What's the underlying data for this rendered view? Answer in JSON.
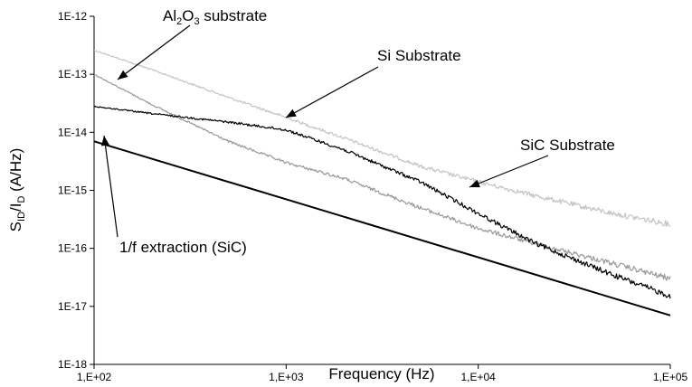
{
  "chart_data": {
    "type": "line",
    "title": "",
    "xlabel": "Frequency (Hz)",
    "ylabel": {
      "main": "S",
      "sub1": "ID",
      "mid": "/I",
      "sub2": "D",
      "tail": " (A/Hz)"
    },
    "x_scale": "log",
    "y_scale": "log",
    "xlim": [
      100,
      100000
    ],
    "ylim": [
      1e-18,
      1e-12
    ],
    "x_ticks": [
      {
        "value": 100,
        "label": "1,E+02"
      },
      {
        "value": 1000,
        "label": "1,E+03"
      },
      {
        "value": 10000,
        "label": "1,E+04"
      },
      {
        "value": 100000,
        "label": "1,E+05"
      }
    ],
    "y_ticks": [
      {
        "value": 1e-12,
        "label": "1E-12"
      },
      {
        "value": 1e-13,
        "label": "1E-13"
      },
      {
        "value": 1e-14,
        "label": "1E-14"
      },
      {
        "value": 1e-15,
        "label": "1E-15"
      },
      {
        "value": 1e-16,
        "label": "1E-16"
      },
      {
        "value": 1e-17,
        "label": "1E-17"
      },
      {
        "value": 1e-18,
        "label": "1E-18"
      }
    ],
    "grid": false,
    "series": [
      {
        "color": "#c4c4c4",
        "width": 1.2,
        "noisy": true,
        "x": [
          100,
          200,
          500,
          1000,
          2000,
          5000,
          10000,
          20000,
          50000,
          100000
        ],
        "y": [
          2.6e-13,
          1.2e-13,
          4e-14,
          1.8e-14,
          8e-15,
          2.6e-15,
          1.4e-15,
          8e-16,
          4e-16,
          2.6e-16
        ]
      },
      {
        "color": "#999999",
        "width": 1.2,
        "noisy": true,
        "x": [
          100,
          200,
          500,
          1000,
          2000,
          5000,
          10000,
          20000,
          50000,
          100000
        ],
        "y": [
          1e-13,
          3e-14,
          7e-15,
          3e-15,
          1.6e-15,
          5e-16,
          2.2e-16,
          1.2e-16,
          5.5e-17,
          3e-17
        ]
      },
      {
        "color": "#000000",
        "width": 1.2,
        "noisy": true,
        "x": [
          100,
          200,
          500,
          1000,
          2000,
          5000,
          10000,
          20000,
          50000,
          100000
        ],
        "y": [
          2.8e-14,
          2.1e-14,
          1.5e-14,
          1.1e-14,
          5e-15,
          1.4e-15,
          4e-16,
          1.2e-16,
          3.5e-17,
          1.5e-17
        ]
      },
      {
        "color": "#000000",
        "width": 2,
        "noisy": false,
        "x": [
          100,
          100000
        ],
        "y": [
          7e-15,
          7e-18
        ]
      }
    ],
    "annotations": [
      {
        "text": "Al",
        "sub": "2",
        "text2": "O",
        "sub2": "3",
        "text3": " substrate"
      },
      {
        "text": "Si Substrate"
      },
      {
        "text": "SiC Substrate"
      },
      {
        "text": "1/f extraction (SiC)"
      }
    ]
  }
}
